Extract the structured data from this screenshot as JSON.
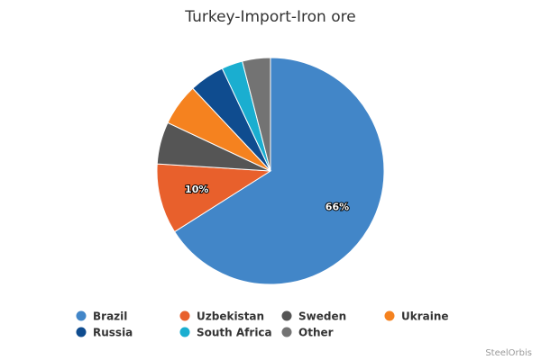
{
  "chart_data": {
    "type": "pie",
    "title": "Turkey-Import-Iron ore",
    "categories": [
      "Brazil",
      "Uzbekistan",
      "Sweden",
      "Ukraine",
      "Russia",
      "South Africa",
      "Other"
    ],
    "values": [
      66,
      10,
      6,
      6,
      5,
      3,
      4
    ],
    "value_labels": [
      "66%",
      "10%",
      null,
      null,
      null,
      null,
      null
    ],
    "colors": [
      "#4286c8",
      "#e8602c",
      "#555555",
      "#f5821f",
      "#0f4c8f",
      "#1aaed0",
      "#737373"
    ],
    "credits": "SteelOrbis"
  }
}
